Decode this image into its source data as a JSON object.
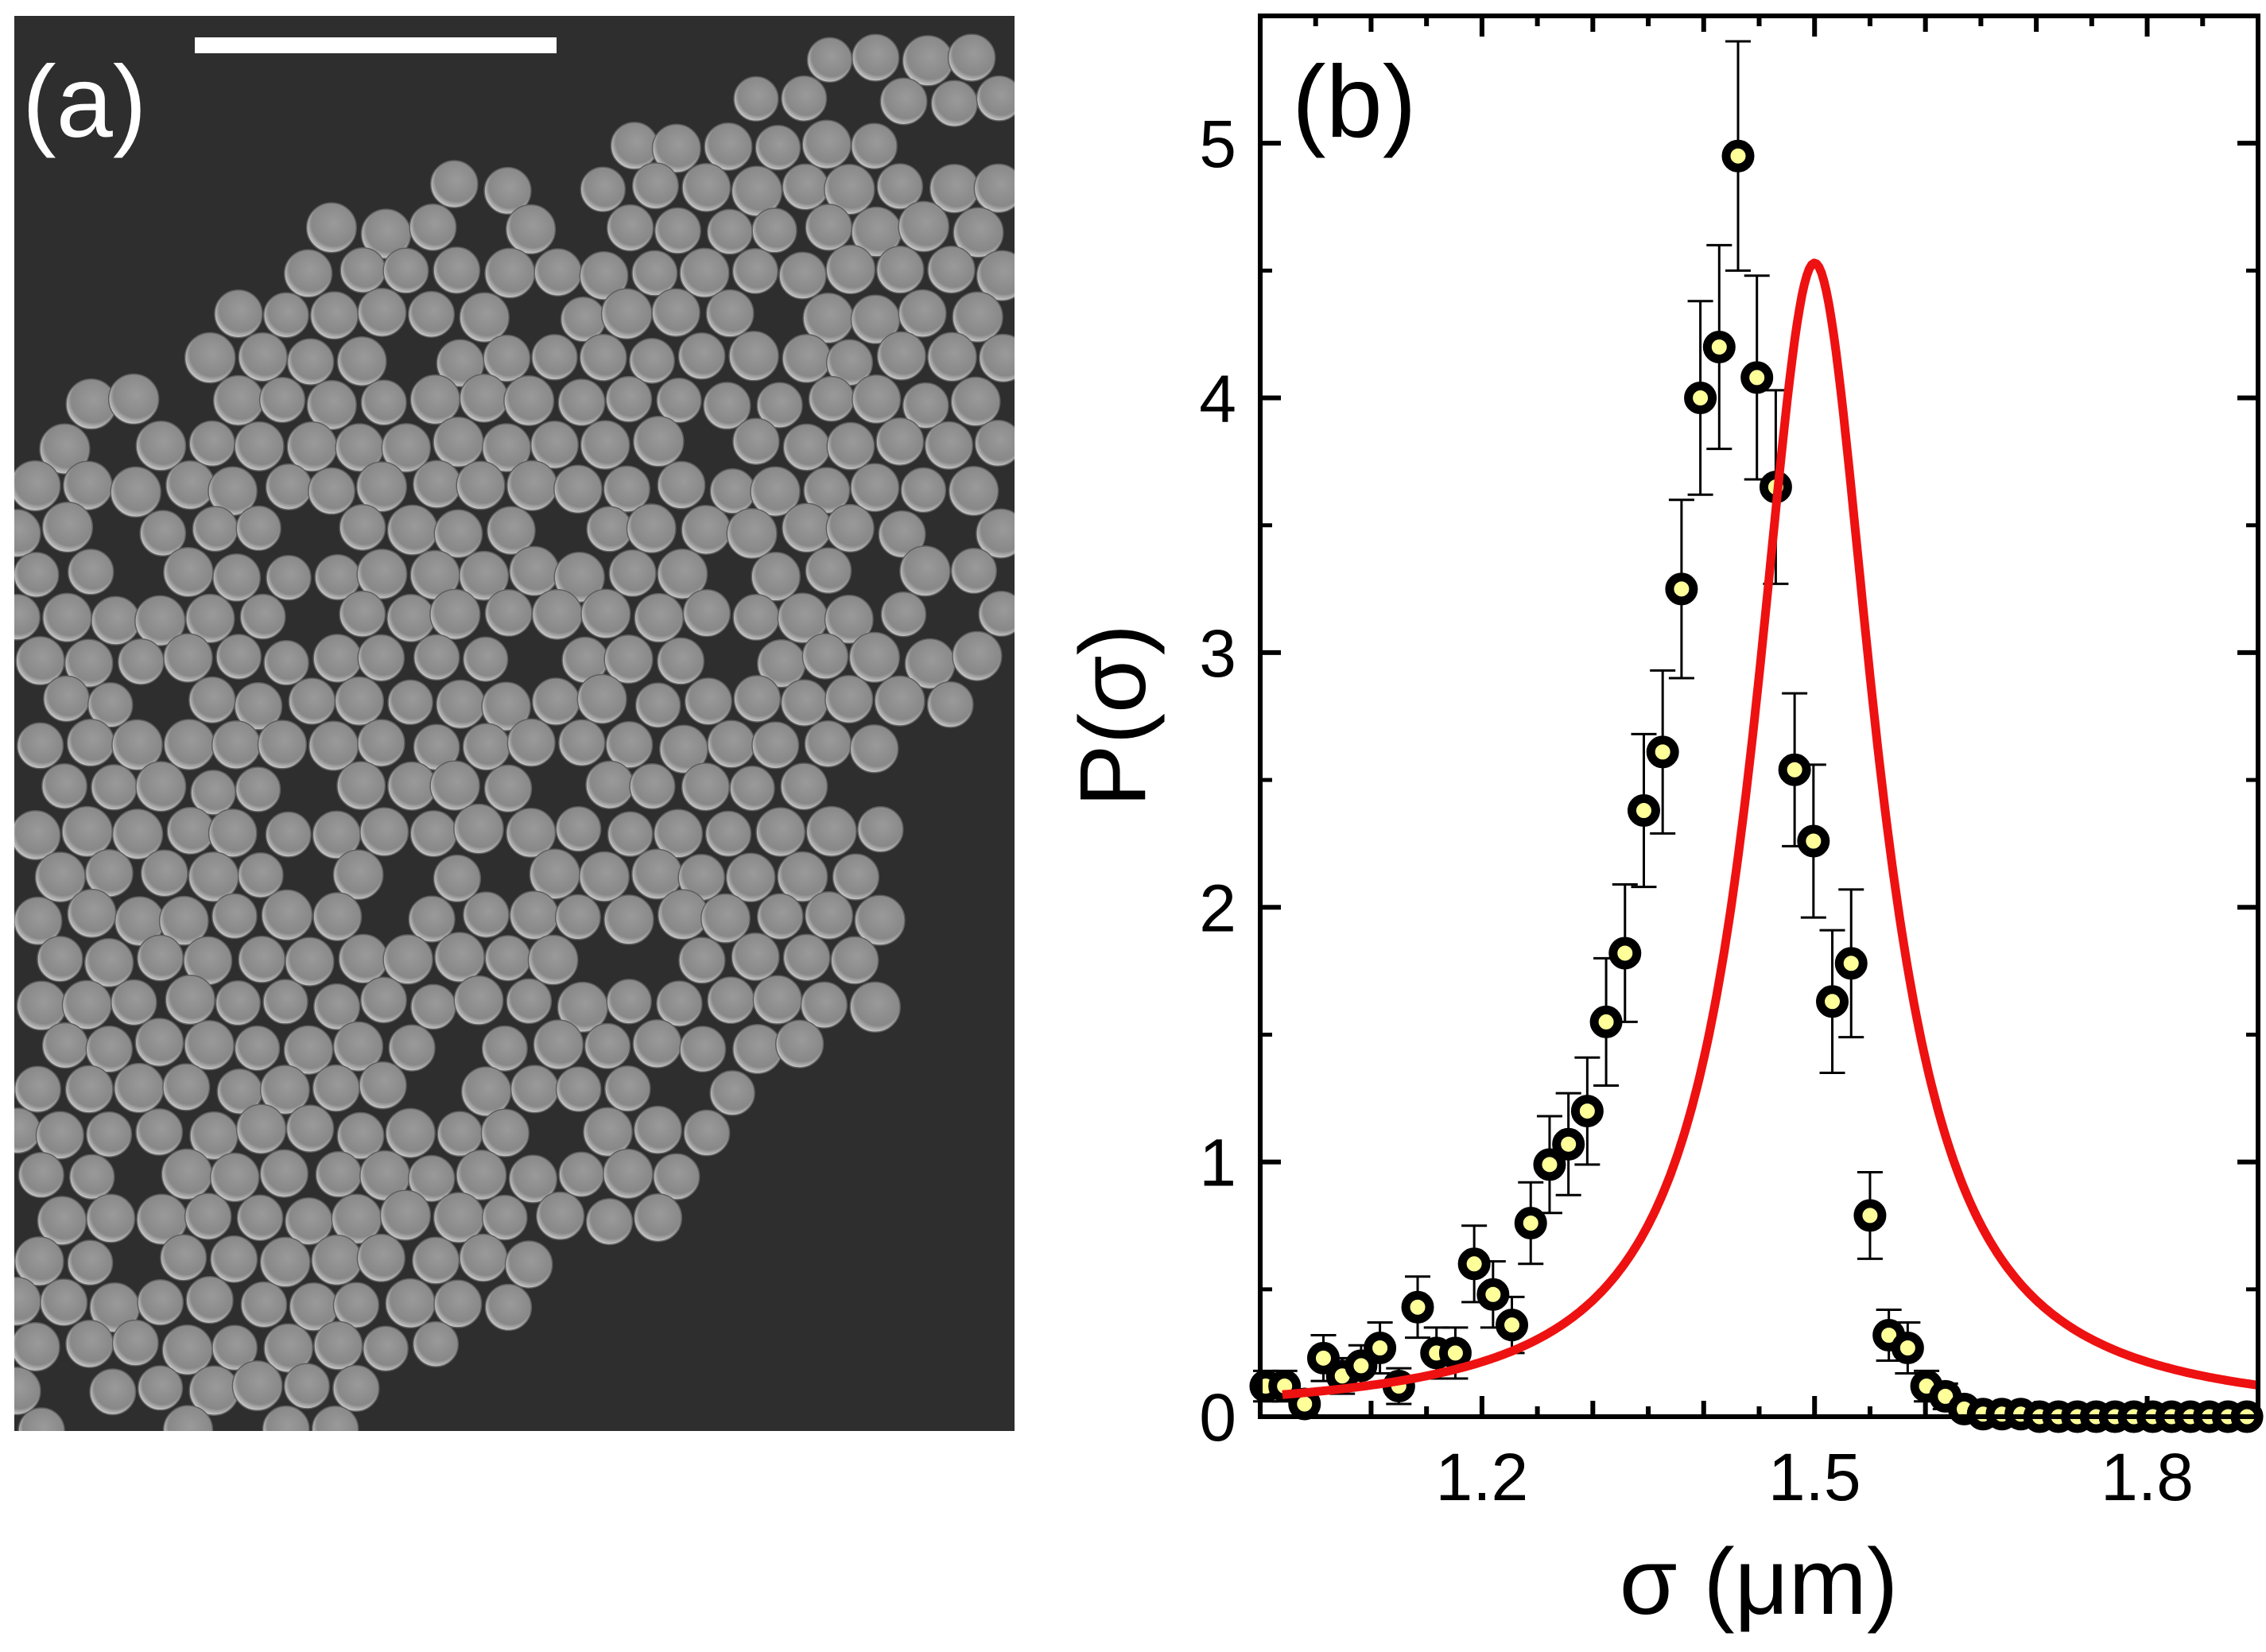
{
  "panel_a": {
    "label": "(a)",
    "image_description_name": "sem-micrograph-colloidal-spheres",
    "colors": {
      "background": "#2e2e2e",
      "sphere": "#8a8a8a",
      "sphere_highlight": "#cfcfcf",
      "scalebar": "#ffffff"
    }
  },
  "chart_data": {
    "type": "scatter",
    "panel_label": "(b)",
    "title": "",
    "xlabel": "σ (μm)",
    "ylabel": "P(σ)",
    "xlim": [
      1.0,
      1.9
    ],
    "ylim": [
      0,
      5.5
    ],
    "xticks": [
      1.2,
      1.5,
      1.8
    ],
    "xtick_labels": [
      "1.2",
      "1.5",
      "1.8"
    ],
    "yticks": [
      0,
      1,
      2,
      3,
      4,
      5
    ],
    "ytick_labels": [
      "0",
      "1",
      "2",
      "3",
      "4",
      "5"
    ],
    "grid": false,
    "colors": {
      "marker_edge": "#000000",
      "marker_fill": "#ffff99",
      "fit_line": "#ee1111",
      "axes": "#000000"
    },
    "series": [
      {
        "name": "measured",
        "kind": "scatter_errorbar",
        "x": [
          1.005,
          1.022,
          1.04,
          1.057,
          1.074,
          1.091,
          1.108,
          1.125,
          1.142,
          1.159,
          1.176,
          1.193,
          1.21,
          1.227,
          1.244,
          1.261,
          1.278,
          1.295,
          1.312,
          1.329,
          1.346,
          1.363,
          1.38,
          1.397,
          1.414,
          1.431,
          1.448,
          1.465,
          1.482,
          1.499,
          1.516,
          1.533,
          1.55,
          1.567,
          1.584,
          1.601,
          1.618,
          1.635,
          1.652,
          1.669,
          1.686,
          1.703,
          1.72,
          1.737,
          1.754,
          1.771,
          1.788,
          1.805,
          1.822,
          1.839,
          1.856,
          1.873,
          1.89
        ],
        "y": [
          0.12,
          0.12,
          0.05,
          0.23,
          0.16,
          0.2,
          0.27,
          0.12,
          0.43,
          0.25,
          0.25,
          0.6,
          0.48,
          0.36,
          0.76,
          0.99,
          1.07,
          1.2,
          1.55,
          1.82,
          2.38,
          2.61,
          3.25,
          4.0,
          4.2,
          4.95,
          4.08,
          3.65,
          2.54,
          2.26,
          1.63,
          1.78,
          0.79,
          0.32,
          0.27,
          0.12,
          0.08,
          0.03,
          0.01,
          0.01,
          0.01,
          0.0,
          0.0,
          0.0,
          0.0,
          0.0,
          0.0,
          0.0,
          0.0,
          0.0,
          0.0,
          0.0,
          0.0
        ],
        "yerr": [
          0.06,
          0.06,
          0.05,
          0.09,
          0.07,
          0.08,
          0.1,
          0.07,
          0.12,
          0.1,
          0.1,
          0.15,
          0.13,
          0.11,
          0.16,
          0.19,
          0.2,
          0.21,
          0.25,
          0.27,
          0.3,
          0.32,
          0.35,
          0.38,
          0.4,
          0.45,
          0.4,
          0.38,
          0.3,
          0.3,
          0.28,
          0.29,
          0.17,
          0.1,
          0.1,
          0.06,
          0.05,
          0.03,
          0.02,
          0.02,
          0.02,
          0.01,
          0.01,
          0.01,
          0.01,
          0.01,
          0.01,
          0.01,
          0.01,
          0.01,
          0.01,
          0.01,
          0.01
        ]
      },
      {
        "name": "fit",
        "kind": "line",
        "function": "lorentzian",
        "center": 1.5,
        "gamma": 0.067,
        "amplitude": 4.53,
        "x_range": [
          1.02,
          1.9
        ]
      }
    ]
  }
}
